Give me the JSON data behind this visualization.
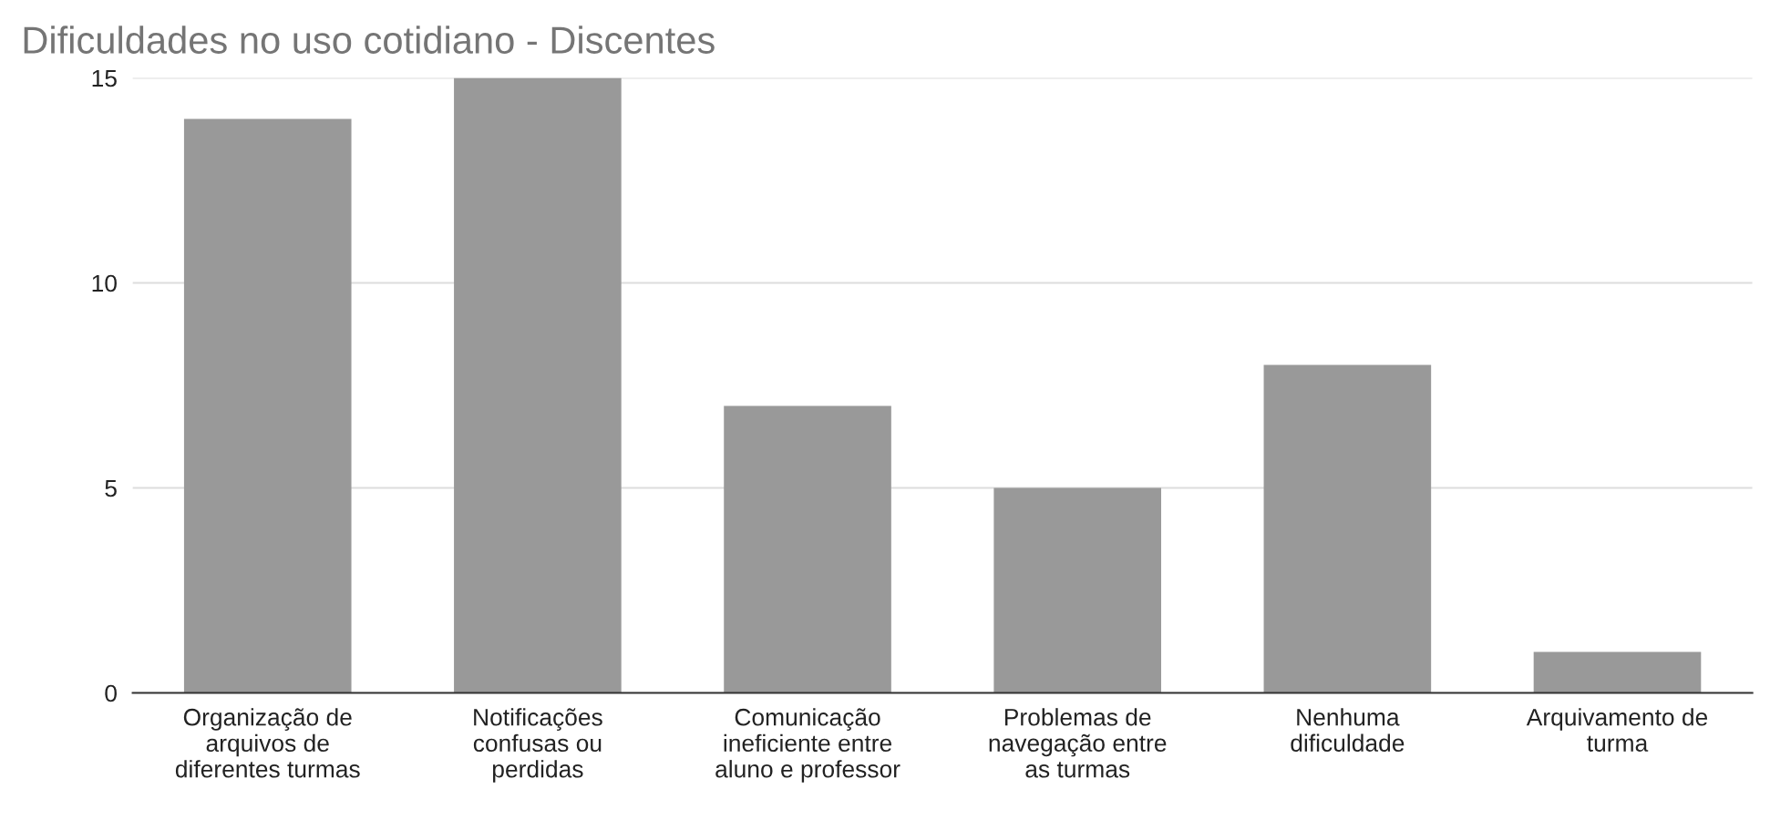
{
  "chart_data": {
    "type": "bar",
    "title": "Dificuldades no uso cotidiano - Discentes",
    "categories": [
      "Organização de\narquivos de\ndiferentes turmas",
      "Notificações\nconfusas ou\nperdidas",
      "Comunicação\nineficiente entre\naluno e professor",
      "Problemas de\nnavegação entre\nas turmas",
      "Nenhuma\ndificuldade",
      "Arquivamento de\nturma"
    ],
    "values": [
      14,
      15,
      7,
      5,
      8,
      1
    ],
    "color": "#999999",
    "ylim": [
      0,
      15
    ],
    "yticks": [
      0,
      5,
      10,
      15
    ],
    "grid": "y"
  }
}
